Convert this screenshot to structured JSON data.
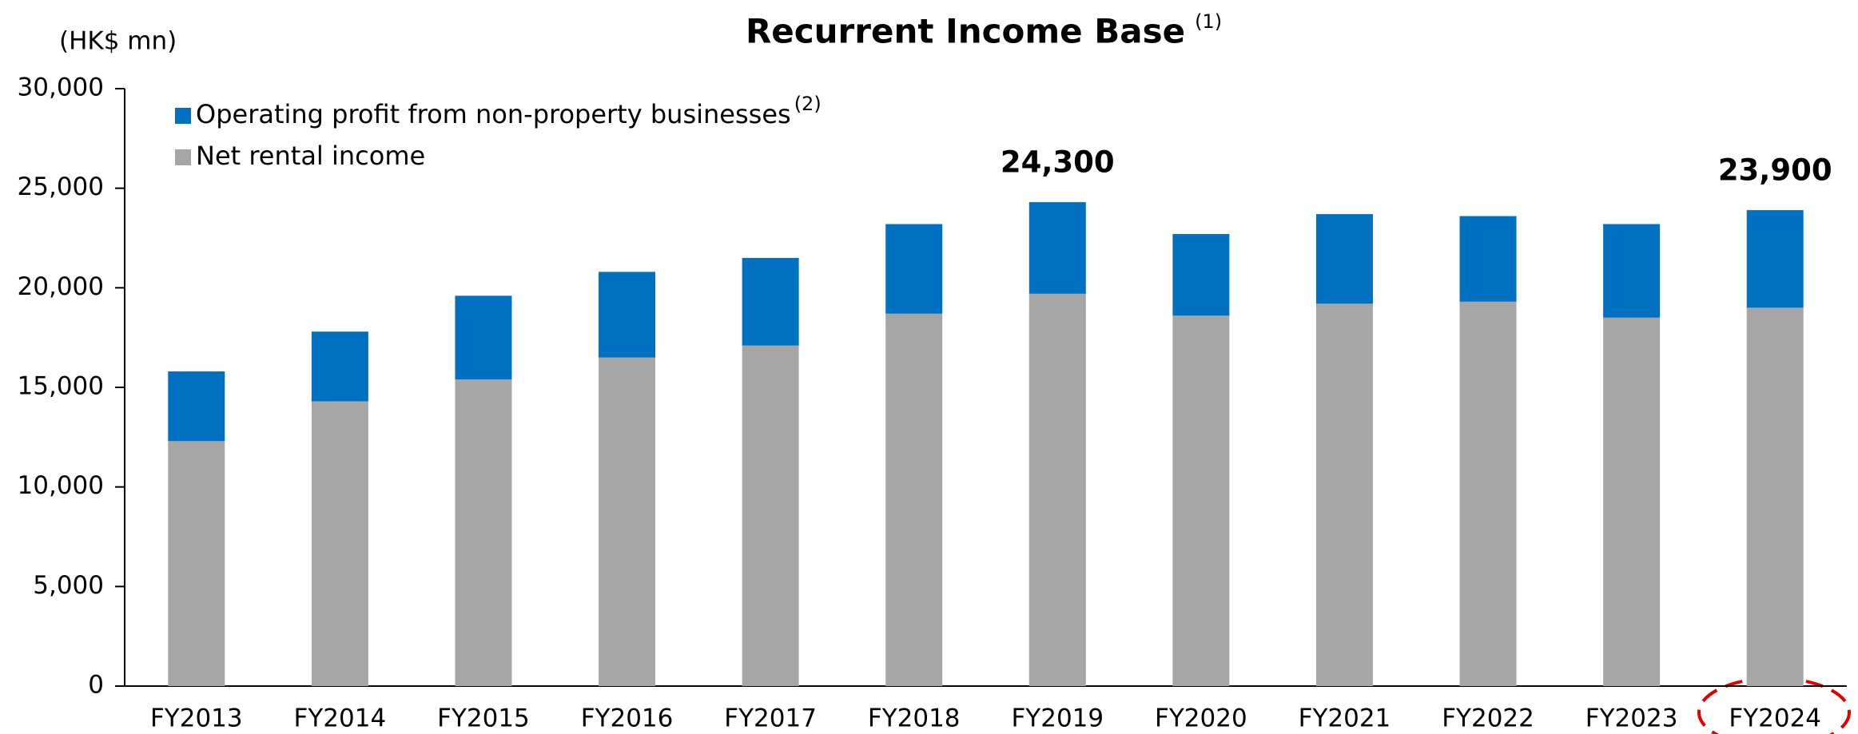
{
  "chart_data": {
    "type": "stacked_bar",
    "title": "Recurrent Income Base",
    "title_note": "(1)",
    "y_axis_label": "(HK$ mn)",
    "categories": [
      "FY2013",
      "FY2014",
      "FY2015",
      "FY2016",
      "FY2017",
      "FY2018",
      "FY2019",
      "FY2020",
      "FY2021",
      "FY2022",
      "FY2023",
      "FY2024"
    ],
    "series": [
      {
        "name": "Net rental income",
        "color": "#a6a6a6",
        "values": [
          12300,
          14300,
          15400,
          16500,
          17100,
          18700,
          19700,
          18600,
          19200,
          19300,
          18500,
          19000
        ]
      },
      {
        "name": "Operating profit from non-property businesses",
        "note": "(2)",
        "color": "#0070c0",
        "values": [
          3500,
          3500,
          4200,
          4300,
          4400,
          4500,
          4600,
          4100,
          4500,
          4300,
          4700,
          4900
        ]
      }
    ],
    "total_labels": [
      null,
      null,
      null,
      null,
      null,
      null,
      "24,300",
      null,
      null,
      null,
      null,
      "23,900"
    ],
    "ylim": [
      0,
      30000
    ],
    "yticks": [
      0,
      {
        "value": 5000,
        "label": "5,000"
      },
      {
        "value": 10000,
        "label": "10,000"
      },
      {
        "value": 15000,
        "label": "15,000"
      },
      {
        "value": 20000,
        "label": "20,000"
      },
      {
        "value": 25000,
        "label": "25,000"
      },
      {
        "value": 30000,
        "label": "30,000"
      }
    ],
    "grid": false
  }
}
